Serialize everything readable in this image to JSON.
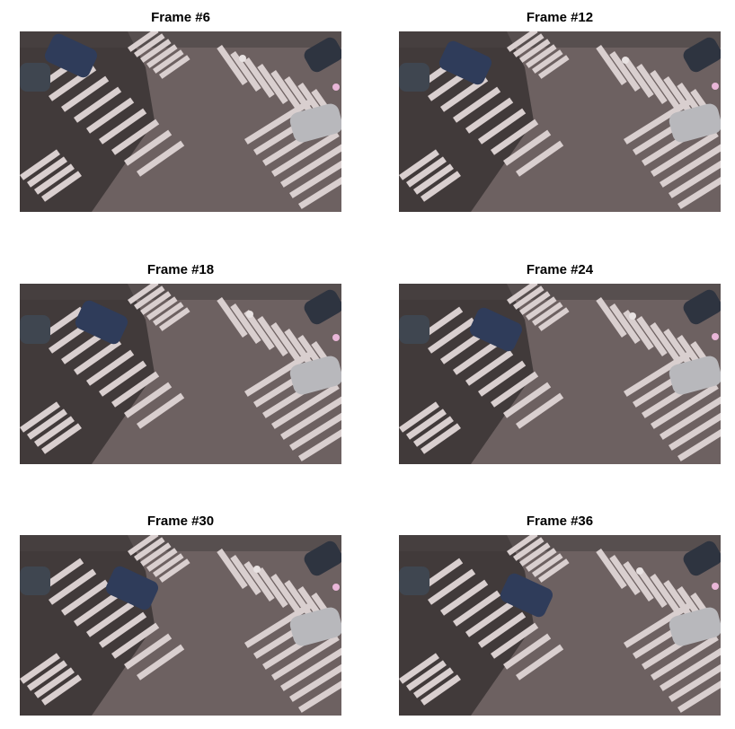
{
  "figure": {
    "frames": [
      {
        "title": "Frame #6",
        "car_offset": 0
      },
      {
        "title": "Frame #12",
        "car_offset": 1
      },
      {
        "title": "Frame #18",
        "car_offset": 2
      },
      {
        "title": "Frame #24",
        "car_offset": 3
      },
      {
        "title": "Frame #30",
        "car_offset": 4
      },
      {
        "title": "Frame #36",
        "car_offset": 5
      }
    ]
  },
  "colors": {
    "road": "#6d6161",
    "shadow": "#3a3434",
    "stripe": "#d9cfcf",
    "silver_car": "#b8b8bc",
    "dark_car": "#2e3440",
    "moving_car": "#2f3c5a"
  }
}
